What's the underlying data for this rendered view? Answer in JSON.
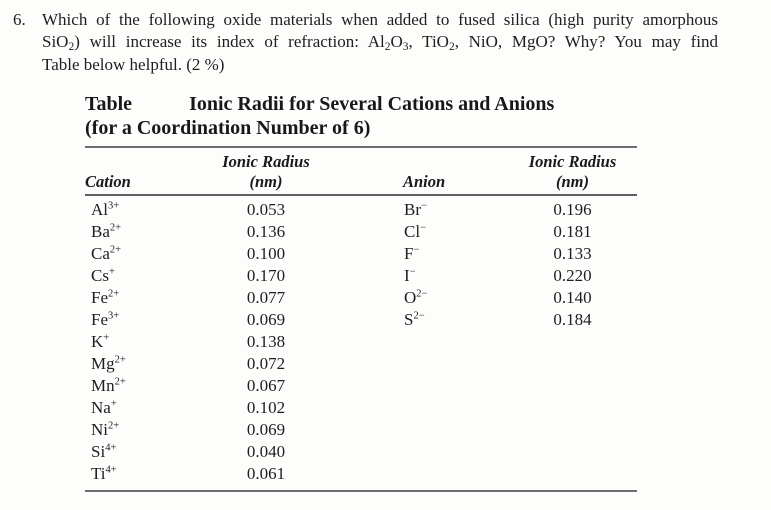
{
  "colors": {
    "background": "#fdfdfc",
    "text": "#1e1e1e",
    "rule": "#6e6e6e"
  },
  "question": {
    "number": "6.",
    "lines": [
      [
        {
          "t": "Which of the following oxide materials when added to fused silica (high purity amorphous"
        }
      ],
      [
        {
          "t": "SiO"
        },
        {
          "t": "2",
          "sub": true
        },
        {
          "t": ") will increase its index of refraction: Al"
        },
        {
          "t": "2",
          "sub": true
        },
        {
          "t": "O"
        },
        {
          "t": "3",
          "sub": true
        },
        {
          "t": ", TiO"
        },
        {
          "t": "2",
          "sub": true
        },
        {
          "t": ", NiO, MgO? Why? You may find"
        }
      ],
      [
        {
          "t": "Table below helpful. (2 %)"
        }
      ]
    ]
  },
  "table": {
    "title_label": "Table",
    "title": "Ionic Radii for Several Cations and Anions",
    "subtitle": "(for a Coordination Number of 6)",
    "headers": {
      "cation": "Cation",
      "anion": "Anion",
      "radius": "Ionic Radius",
      "unit": "(nm)"
    },
    "cations": [
      {
        "symbol": "Al",
        "charge": "3+",
        "radius": "0.053"
      },
      {
        "symbol": "Ba",
        "charge": "2+",
        "radius": "0.136"
      },
      {
        "symbol": "Ca",
        "charge": "2+",
        "radius": "0.100"
      },
      {
        "symbol": "Cs",
        "charge": "+",
        "radius": "0.170"
      },
      {
        "symbol": "Fe",
        "charge": "2+",
        "radius": "0.077"
      },
      {
        "symbol": "Fe",
        "charge": "3+",
        "radius": "0.069"
      },
      {
        "symbol": "K",
        "charge": "+",
        "radius": "0.138"
      },
      {
        "symbol": "Mg",
        "charge": "2+",
        "radius": "0.072"
      },
      {
        "symbol": "Mn",
        "charge": "2+",
        "radius": "0.067"
      },
      {
        "symbol": "Na",
        "charge": "+",
        "radius": "0.102"
      },
      {
        "symbol": "Ni",
        "charge": "2+",
        "radius": "0.069"
      },
      {
        "symbol": "Si",
        "charge": "4+",
        "radius": "0.040"
      },
      {
        "symbol": "Ti",
        "charge": "4+",
        "radius": "0.061"
      }
    ],
    "anions": [
      {
        "symbol": "Br",
        "charge": "−",
        "radius": "0.196"
      },
      {
        "symbol": "Cl",
        "charge": "−",
        "radius": "0.181"
      },
      {
        "symbol": "F",
        "charge": "−",
        "radius": "0.133"
      },
      {
        "symbol": "I",
        "charge": "−",
        "radius": "0.220"
      },
      {
        "symbol": "O",
        "charge": "2−",
        "radius": "0.140"
      },
      {
        "symbol": "S",
        "charge": "2−",
        "radius": "0.184"
      }
    ]
  }
}
